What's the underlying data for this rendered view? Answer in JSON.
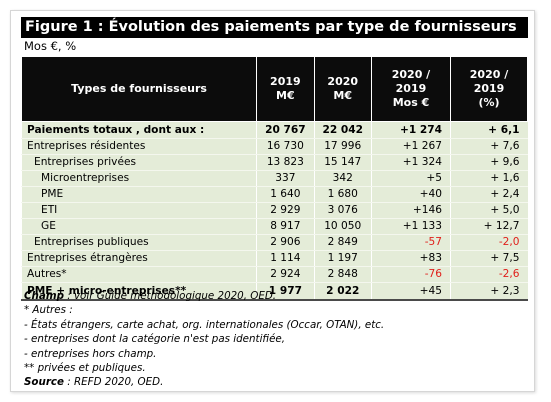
{
  "title": "Figure 1 : Évolution des paiements par type de fournisseurs",
  "units": "Mos €, %",
  "headers": {
    "label": "Types de fournisseurs",
    "y2019": [
      "2019",
      "M€"
    ],
    "y2020": [
      "2020",
      "M€"
    ],
    "diff": [
      "2020 /",
      "2019",
      "Mos €"
    ],
    "pct": [
      "2020 /",
      "2019",
      "(%)"
    ]
  },
  "rows": [
    {
      "label": "Paiements totaux , dont aux :",
      "y2019": "20 767",
      "y2020": "22 042",
      "diff": "+1 274",
      "pct": "+ 6,1"
    },
    {
      "label": "Entreprises résidentes",
      "y2019": "16 730",
      "y2020": "17 996",
      "diff": "+1 267",
      "pct": "+ 7,6"
    },
    {
      "label": "Entreprises privées",
      "y2019": "13 823",
      "y2020": "15 147",
      "diff": "+1 324",
      "pct": "+ 9,6"
    },
    {
      "label": "Microentreprises",
      "y2019": "337",
      "y2020": "342",
      "diff": "+5",
      "pct": "+ 1,6"
    },
    {
      "label": "PME",
      "y2019": "1 640",
      "y2020": "1 680",
      "diff": "+40",
      "pct": "+ 2,4"
    },
    {
      "label": "ETI",
      "y2019": "2 929",
      "y2020": "3 076",
      "diff": "+146",
      "pct": "+ 5,0"
    },
    {
      "label": "GE",
      "y2019": "8 917",
      "y2020": "10 050",
      "diff": "+1 133",
      "pct": "+ 12,7"
    },
    {
      "label": "Entreprises publiques",
      "y2019": "2 906",
      "y2020": "2 849",
      "diff": "-57",
      "pct": "-2,0"
    },
    {
      "label": "Entreprises étrangères",
      "y2019": "1 114",
      "y2020": "1 197",
      "diff": "+83",
      "pct": "+ 7,5"
    },
    {
      "label": "Autres*",
      "y2019": "2 924",
      "y2020": "2 848",
      "diff": "-76",
      "pct": "-2,6"
    },
    {
      "label": "PME + micro-entreprises**",
      "y2019": "1 977",
      "y2020": "2 022",
      "diff": "+45",
      "pct": "+ 2,3"
    }
  ],
  "notes": {
    "champ_label": "Champ",
    "champ_text": " : voir Guide méthodologique 2020, OED.",
    "autres_label": "* Autres :",
    "autres_items": [
      "- États étrangers, carte achat, org. internationales (Occar, OTAN), etc.",
      "- entreprises dont la catégorie n'est pas identifiée,",
      "- entreprises hors champ."
    ],
    "footnote2": "** privées et publiques.",
    "source_label": "Source",
    "source_text": " : REFD 2020, OED."
  },
  "colors": {
    "header_bg": "#0c0c0c",
    "row_bg": "#e4ecd8",
    "negative": "#e0201b"
  }
}
